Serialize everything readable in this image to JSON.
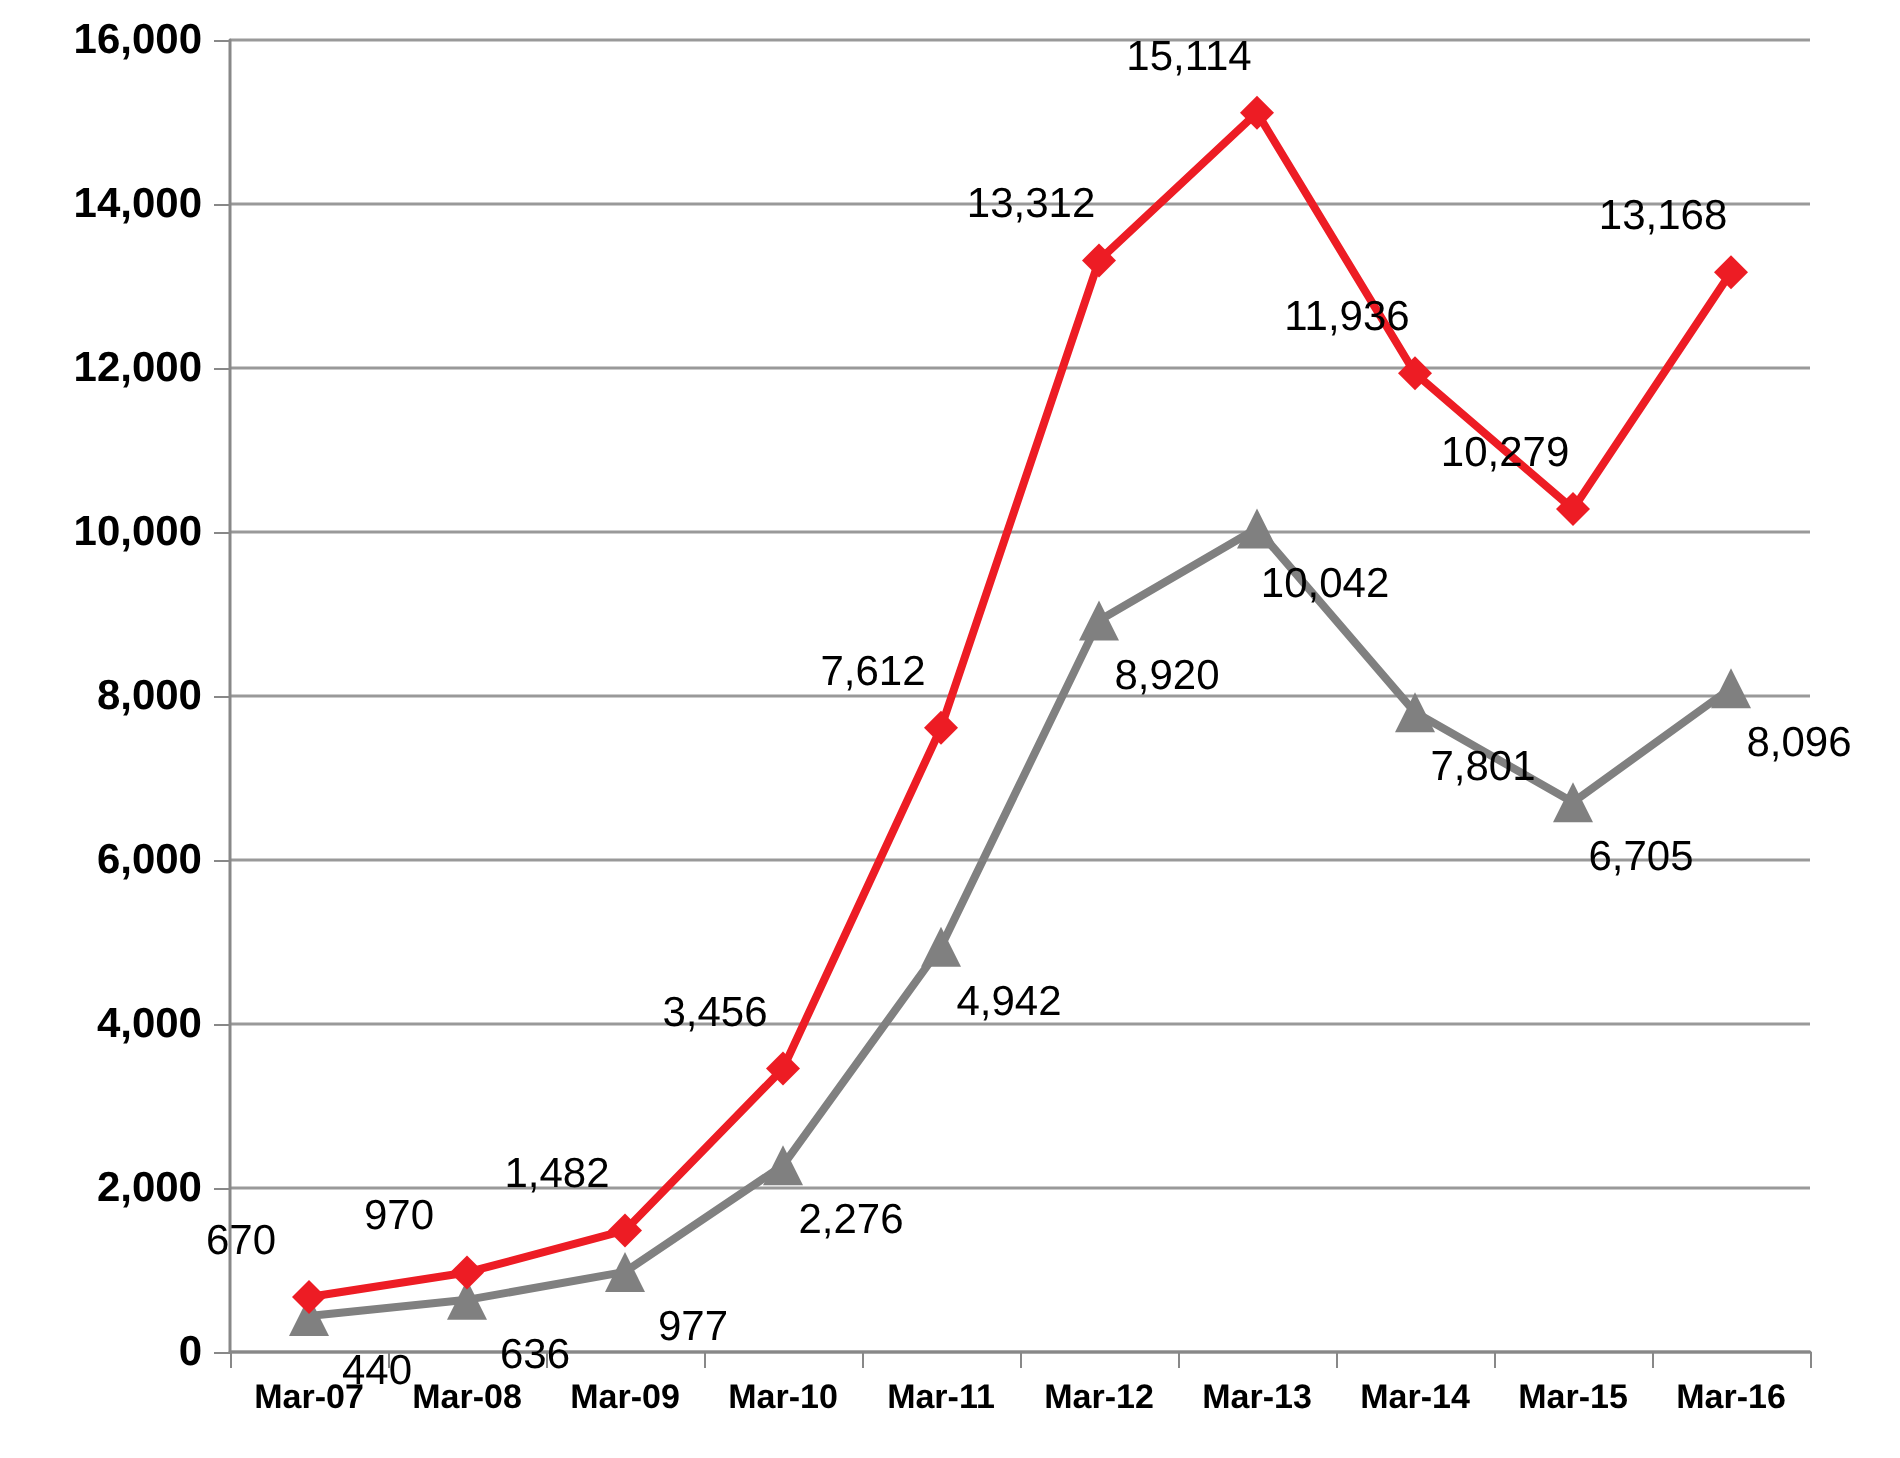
{
  "chart_data": {
    "type": "line",
    "categories": [
      "Mar-07",
      "Mar-08",
      "Mar-09",
      "Mar-10",
      "Mar-11",
      "Mar-12",
      "Mar-13",
      "Mar-14",
      "Mar-15",
      "Mar-16"
    ],
    "series": [
      {
        "color": "#ed1c24",
        "marker": "diamond",
        "values": [
          670,
          970,
          1482,
          3456,
          7612,
          13312,
          15114,
          11936,
          10279,
          13168
        ],
        "value_labels": [
          "670",
          "970",
          "1,482",
          "3,456",
          "7,612",
          "13,312",
          "15,114",
          "11,936",
          "10,279",
          "13,168"
        ]
      },
      {
        "color": "#808080",
        "marker": "triangle",
        "values": [
          440,
          636,
          977,
          2276,
          4942,
          8920,
          10042,
          7801,
          6705,
          8096
        ],
        "value_labels": [
          "440",
          "636",
          "977",
          "2,276",
          "4,942",
          "8,920",
          "10,042",
          "7,801",
          "6,705",
          "8,096"
        ]
      }
    ],
    "ylim": [
      0,
      16000
    ],
    "yticks": [
      {
        "value": 0,
        "label": "0"
      },
      {
        "value": 2000,
        "label": "2,000"
      },
      {
        "value": 4000,
        "label": "4,000"
      },
      {
        "value": 6000,
        "label": "6,000"
      },
      {
        "value": 8000,
        "label": "8,000"
      },
      {
        "value": 10000,
        "label": "10,000"
      },
      {
        "value": 12000,
        "label": "12,000"
      },
      {
        "value": 14000,
        "label": "14,000"
      },
      {
        "value": 16000,
        "label": "16,000"
      }
    ],
    "grid": "y",
    "line_style": "solid"
  }
}
